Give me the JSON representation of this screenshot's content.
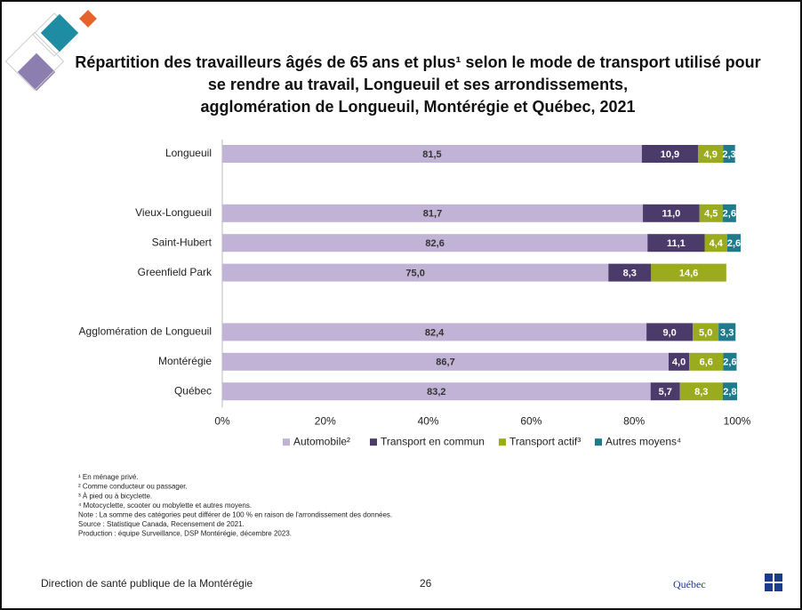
{
  "chart_data": {
    "type": "stacked_barh",
    "title_lines": [
      "Répartition des travailleurs âgés de 65 ans et plus¹ selon le mode de transport utilisé pour",
      "se rendre au travail, Longueuil et ses arrondissements,",
      "agglomération de Longueuil, Montérégie et Québec, 2021"
    ],
    "categories": [
      "Longueuil",
      null,
      "Vieux-Longueuil",
      "Saint-Hubert",
      "Greenfield Park",
      null,
      "Agglomération de Longueuil",
      "Montérégie",
      "Québec"
    ],
    "series": [
      {
        "name": "Automobile²",
        "color": "#c0b3d6",
        "values": [
          81.5,
          null,
          81.7,
          82.6,
          75.0,
          null,
          82.4,
          86.7,
          83.2
        ],
        "value_labels": [
          "81,5",
          null,
          "81,7",
          "82,6",
          "75,0",
          null,
          "82,4",
          "86,7",
          "83,2"
        ]
      },
      {
        "name": "Transport en commun",
        "color": "#4b3b6b",
        "values": [
          10.9,
          null,
          11.0,
          11.1,
          8.3,
          null,
          9.0,
          4.0,
          5.7
        ],
        "value_labels": [
          "10,9",
          null,
          "11,0",
          "11,1",
          "8,3",
          null,
          "9,0",
          "4,0",
          "5,7"
        ]
      },
      {
        "name": "Transport actif³",
        "color": "#9aab1e",
        "values": [
          4.9,
          null,
          4.5,
          4.4,
          14.6,
          null,
          5.0,
          6.6,
          8.3
        ],
        "value_labels": [
          "4,9",
          null,
          "4,5",
          "4,4",
          "14,6",
          null,
          "5,0",
          "6,6",
          "8,3"
        ]
      },
      {
        "name": "Autres moyens⁴",
        "color": "#1e7a8c",
        "values": [
          2.3,
          null,
          2.6,
          2.6,
          null,
          null,
          3.3,
          2.6,
          2.8
        ],
        "value_labels": [
          "2,3",
          null,
          "2,6",
          "2,6",
          null,
          null,
          "3,3",
          "2,6",
          "2,8"
        ]
      }
    ],
    "xlim": [
      0,
      100
    ],
    "xticks": [
      {
        "value": 0,
        "label": "0%"
      },
      {
        "value": 20,
        "label": "20%"
      },
      {
        "value": 40,
        "label": "40%"
      },
      {
        "value": 60,
        "label": "60%"
      },
      {
        "value": 80,
        "label": "80%"
      },
      {
        "value": 100,
        "label": "100%"
      }
    ],
    "legend": "bottom"
  },
  "footnotes": [
    "¹ En ménage privé.",
    "² Comme conducteur ou passager.",
    "³ À pied ou à bicyclette.",
    "⁴ Motocyclette, scooter ou mobylette et autres moyens.",
    "Note : La somme des catégories peut différer de 100 % en raison de l'arrondissement des données.",
    "Source : Statistique Canada, Recensement de 2021.",
    "Production : équipe Surveillance, DSP Montérégie, décembre 2023."
  ],
  "footer": {
    "organization": "Direction de santé publique de la Montérégie",
    "page": "26",
    "logo": "Québec"
  }
}
